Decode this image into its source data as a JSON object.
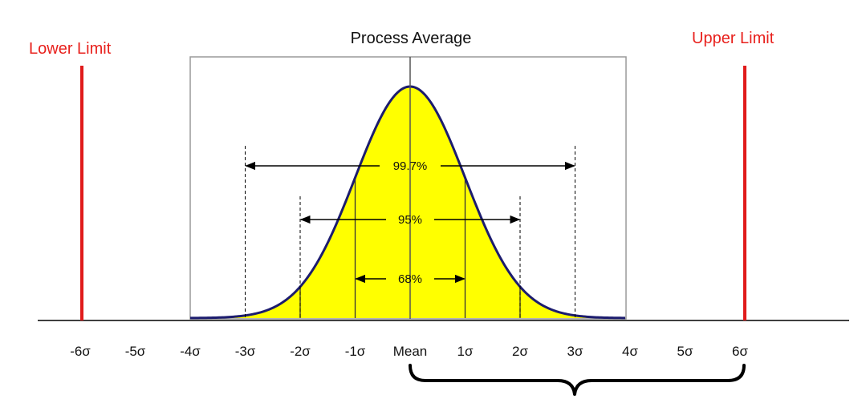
{
  "labels": {
    "lower_limit": "Lower Limit",
    "upper_limit": "Upper Limit",
    "process_average": "Process Average"
  },
  "ranges": [
    {
      "label": "99.7%",
      "sigma": 3
    },
    {
      "label": "95%",
      "sigma": 2
    },
    {
      "label": "68%",
      "sigma": 1
    }
  ],
  "axis_ticks": [
    "-6σ",
    "-5σ",
    "-4σ",
    "-3σ",
    "-2σ",
    "-1σ",
    "Mean",
    "1σ",
    "2σ",
    "3σ",
    "4σ",
    "5σ",
    "6σ"
  ],
  "spec_limits_sigma": [
    -6,
    6
  ],
  "colors": {
    "curve_fill": "#ffff00",
    "curve_stroke": "#1c1c6e",
    "limit_line": "#e01b1b",
    "limit_text": "#e8201c",
    "box_stroke": "#9a9a9a"
  }
}
